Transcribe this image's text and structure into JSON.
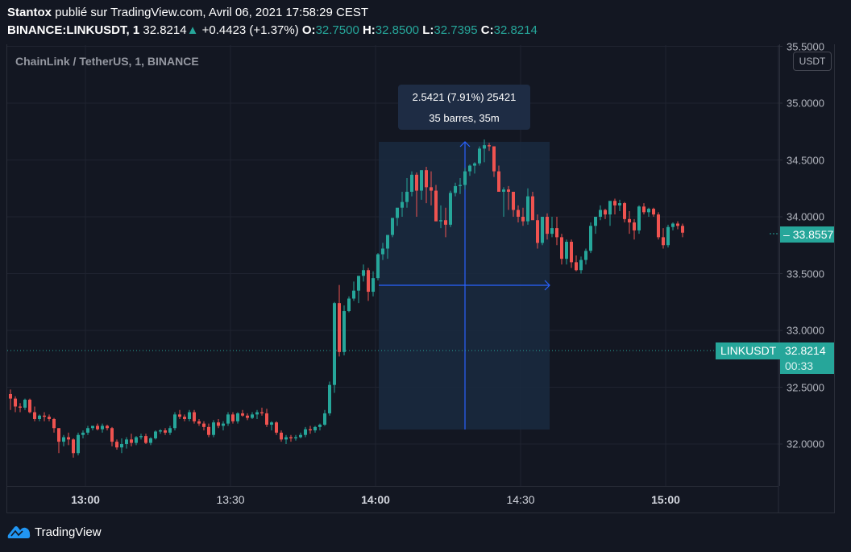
{
  "header": {
    "author": "Stantox",
    "published_text": "publié sur TradingView.com, Avril 06, 2021 17:58:29 CEST",
    "symbol_line": "BINANCE:LINKUSDT, 1",
    "last": "32.8214",
    "change_arrow": "▲",
    "change": "+0.4423 (+1.37%)",
    "o_label": "O:",
    "o_value": "32.7500",
    "h_label": "H:",
    "h_value": "32.8500",
    "l_label": "L:",
    "l_value": "32.7395",
    "c_label": "C:",
    "c_value": "32.8214"
  },
  "legend": {
    "title": "ChainLink / TetherUS, 1, BINANCE"
  },
  "price_scale": {
    "currency": "USDT",
    "ticks": [
      "35.5000",
      "35.0000",
      "34.5000",
      "34.0000",
      "33.5000",
      "33.0000",
      "32.5000",
      "32.0000"
    ],
    "last_price_label": "33.8557",
    "symbol_label": "LINKUSDT",
    "current_price": "32.8214",
    "countdown": "00:33"
  },
  "time_scale": {
    "ticks": [
      {
        "label": "13:00",
        "bold": true
      },
      {
        "label": "13:30",
        "bold": false
      },
      {
        "label": "14:00",
        "bold": true
      },
      {
        "label": "14:30",
        "bold": false
      },
      {
        "label": "15:00",
        "bold": true
      }
    ]
  },
  "measure": {
    "line1": "2.5421 (7.91%) 25421",
    "line2": "35 barres, 35m"
  },
  "footer": {
    "brand": "TradingView"
  },
  "colors": {
    "background": "#131722",
    "up": "#26a69a",
    "down": "#ef5350",
    "grid": "#1f2330",
    "measure_fill": "#1a2a40",
    "measure_line": "#2962ff",
    "tooltip_bg": "#1e2c44"
  },
  "chart_data": {
    "type": "candlestick",
    "title": "ChainLink / TetherUS, 1, BINANCE",
    "interval": "1m",
    "xlabel": "",
    "ylabel": "USDT",
    "ylim": [
      31.65,
      35.55
    ],
    "yticks": [
      32.0,
      32.5,
      33.0,
      33.5,
      34.0,
      34.5,
      35.0,
      35.5
    ],
    "xticks": [
      "13:00",
      "13:30",
      "14:00",
      "14:30",
      "15:00"
    ],
    "grid": true,
    "measurement": {
      "from_price": 32.13,
      "to_price": 34.67,
      "delta": 2.5421,
      "pct": 7.91,
      "bars": 35,
      "duration": "35m"
    },
    "current_price": 32.8214,
    "candles_ohlc": [
      [
        32.44,
        32.48,
        32.3,
        32.4
      ],
      [
        32.4,
        32.42,
        32.28,
        32.33
      ],
      [
        32.33,
        32.36,
        32.28,
        32.32
      ],
      [
        32.32,
        32.4,
        32.3,
        32.39
      ],
      [
        32.39,
        32.4,
        32.27,
        32.28
      ],
      [
        32.28,
        32.33,
        32.2,
        32.22
      ],
      [
        32.22,
        32.26,
        32.2,
        32.25
      ],
      [
        32.25,
        32.28,
        32.2,
        32.24
      ],
      [
        32.24,
        32.26,
        32.2,
        32.22
      ],
      [
        32.22,
        32.23,
        32.1,
        32.14
      ],
      [
        32.14,
        32.14,
        31.92,
        32.02
      ],
      [
        32.02,
        32.08,
        31.98,
        32.06
      ],
      [
        32.06,
        32.1,
        31.99,
        32.04
      ],
      [
        32.04,
        32.05,
        31.88,
        31.92
      ],
      [
        31.92,
        32.1,
        31.9,
        32.08
      ],
      [
        32.08,
        32.12,
        32.05,
        32.1
      ],
      [
        32.1,
        32.16,
        32.08,
        32.14
      ],
      [
        32.14,
        32.16,
        32.12,
        32.16
      ],
      [
        32.16,
        32.18,
        32.12,
        32.13
      ],
      [
        32.13,
        32.18,
        32.1,
        32.16
      ],
      [
        32.16,
        32.17,
        32.12,
        32.14
      ],
      [
        32.14,
        32.15,
        31.98,
        32.02
      ],
      [
        32.02,
        32.04,
        31.95,
        31.97
      ],
      [
        31.97,
        32.05,
        31.92,
        32.0
      ],
      [
        32.0,
        32.06,
        31.96,
        32.04
      ],
      [
        32.04,
        32.09,
        31.98,
        32.01
      ],
      [
        32.01,
        32.07,
        31.99,
        32.06
      ],
      [
        32.06,
        32.09,
        32.04,
        32.07
      ],
      [
        32.07,
        32.09,
        32.0,
        32.01
      ],
      [
        32.01,
        32.06,
        31.99,
        32.05
      ],
      [
        32.05,
        32.12,
        32.04,
        32.11
      ],
      [
        32.11,
        32.13,
        32.09,
        32.12
      ],
      [
        32.12,
        32.14,
        32.08,
        32.1
      ],
      [
        32.1,
        32.16,
        32.08,
        32.14
      ],
      [
        32.14,
        32.28,
        32.12,
        32.26
      ],
      [
        32.26,
        32.3,
        32.22,
        32.24
      ],
      [
        32.24,
        32.26,
        32.2,
        32.22
      ],
      [
        32.22,
        32.3,
        32.2,
        32.28
      ],
      [
        32.28,
        32.3,
        32.18,
        32.2
      ],
      [
        32.2,
        32.22,
        32.16,
        32.18
      ],
      [
        32.18,
        32.2,
        32.12,
        32.15
      ],
      [
        32.15,
        32.18,
        32.06,
        32.08
      ],
      [
        32.08,
        32.21,
        32.06,
        32.19
      ],
      [
        32.19,
        32.22,
        32.14,
        32.16
      ],
      [
        32.16,
        32.2,
        32.12,
        32.18
      ],
      [
        32.18,
        32.28,
        32.16,
        32.26
      ],
      [
        32.26,
        32.28,
        32.18,
        32.2
      ],
      [
        32.2,
        32.28,
        32.18,
        32.27
      ],
      [
        32.27,
        32.3,
        32.24,
        32.25
      ],
      [
        32.25,
        32.27,
        32.21,
        32.23
      ],
      [
        32.23,
        32.28,
        32.22,
        32.26
      ],
      [
        32.26,
        32.3,
        32.22,
        32.28
      ],
      [
        32.28,
        32.32,
        32.25,
        32.27
      ],
      [
        32.27,
        32.31,
        32.15,
        32.17
      ],
      [
        32.17,
        32.2,
        32.12,
        32.19
      ],
      [
        32.19,
        32.2,
        32.08,
        32.1
      ],
      [
        32.1,
        32.12,
        32.02,
        32.04
      ],
      [
        32.04,
        32.08,
        32.0,
        32.06
      ],
      [
        32.06,
        32.08,
        32.02,
        32.05
      ],
      [
        32.05,
        32.08,
        32.03,
        32.06
      ],
      [
        32.06,
        32.1,
        32.05,
        32.08
      ],
      [
        32.08,
        32.15,
        32.06,
        32.13
      ],
      [
        32.13,
        32.16,
        32.09,
        32.12
      ],
      [
        32.12,
        32.16,
        32.1,
        32.15
      ],
      [
        32.15,
        32.18,
        32.12,
        32.17
      ],
      [
        32.17,
        32.3,
        32.16,
        32.27
      ],
      [
        32.27,
        32.55,
        32.25,
        32.52
      ],
      [
        32.52,
        33.25,
        32.45,
        33.24
      ],
      [
        33.24,
        33.4,
        32.77,
        32.81
      ],
      [
        32.81,
        33.22,
        32.78,
        33.17
      ],
      [
        33.17,
        33.3,
        33.16,
        33.28
      ],
      [
        33.28,
        33.43,
        33.26,
        33.35
      ],
      [
        33.35,
        33.48,
        33.24,
        33.48
      ],
      [
        33.48,
        33.58,
        33.43,
        33.53
      ],
      [
        33.53,
        33.55,
        33.26,
        33.34
      ],
      [
        33.34,
        33.52,
        33.3,
        33.46
      ],
      [
        33.46,
        33.68,
        33.44,
        33.67
      ],
      [
        33.67,
        33.77,
        33.62,
        33.72
      ],
      [
        33.72,
        33.8,
        33.63,
        33.84
      ],
      [
        33.84,
        33.95,
        33.82,
        33.99
      ],
      [
        33.99,
        34.04,
        33.92,
        34.08
      ],
      [
        34.08,
        34.22,
        34.0,
        34.13
      ],
      [
        34.13,
        34.34,
        34.08,
        34.22
      ],
      [
        34.22,
        34.4,
        34.18,
        34.37
      ],
      [
        34.37,
        34.39,
        34.0,
        34.23
      ],
      [
        34.23,
        34.41,
        34.15,
        34.41
      ],
      [
        34.41,
        34.44,
        34.12,
        34.26
      ],
      [
        34.26,
        34.4,
        34.1,
        34.23
      ],
      [
        34.23,
        34.28,
        33.96,
        33.96
      ],
      [
        33.96,
        34.1,
        33.9,
        33.97
      ],
      [
        33.97,
        34.08,
        33.82,
        33.93
      ],
      [
        33.93,
        34.23,
        33.91,
        34.21
      ],
      [
        34.21,
        34.3,
        34.18,
        34.27
      ],
      [
        34.27,
        34.34,
        34.2,
        34.28
      ],
      [
        34.28,
        34.43,
        34.24,
        34.4
      ],
      [
        34.4,
        34.46,
        34.36,
        34.45
      ],
      [
        34.45,
        34.48,
        34.38,
        34.47
      ],
      [
        34.47,
        34.62,
        34.45,
        34.6
      ],
      [
        34.6,
        34.68,
        34.48,
        34.63
      ],
      [
        34.63,
        34.65,
        34.58,
        34.62
      ],
      [
        34.62,
        34.62,
        34.35,
        34.4
      ],
      [
        34.4,
        34.45,
        34.24,
        34.22
      ],
      [
        34.22,
        34.26,
        34.0,
        34.24
      ],
      [
        34.24,
        34.27,
        34.06,
        34.22
      ],
      [
        34.22,
        34.22,
        34.0,
        34.06
      ],
      [
        34.06,
        34.1,
        33.95,
        34.0
      ],
      [
        34.0,
        34.08,
        33.92,
        33.96
      ],
      [
        33.96,
        34.25,
        33.93,
        34.18
      ],
      [
        34.18,
        34.22,
        33.99,
        33.97
      ],
      [
        33.97,
        34.02,
        33.72,
        33.77
      ],
      [
        33.77,
        33.98,
        33.75,
        34.0
      ],
      [
        34.0,
        34.03,
        33.8,
        33.85
      ],
      [
        33.85,
        34.0,
        33.82,
        33.9
      ],
      [
        33.9,
        34.0,
        33.75,
        33.82
      ],
      [
        33.82,
        33.85,
        33.58,
        33.63
      ],
      [
        33.63,
        33.8,
        33.58,
        33.78
      ],
      [
        33.78,
        33.8,
        33.55,
        33.6
      ],
      [
        33.6,
        33.66,
        33.52,
        33.53
      ],
      [
        33.53,
        33.65,
        33.5,
        33.62
      ],
      [
        33.62,
        33.72,
        33.58,
        33.7
      ],
      [
        33.7,
        33.95,
        33.68,
        33.92
      ],
      [
        33.92,
        34.0,
        33.85,
        34.0
      ],
      [
        34.0,
        34.1,
        33.97,
        34.06
      ],
      [
        34.06,
        34.07,
        33.98,
        34.02
      ],
      [
        34.02,
        34.1,
        33.92,
        34.14
      ],
      [
        34.14,
        34.16,
        34.02,
        34.1
      ],
      [
        34.1,
        34.15,
        34.05,
        34.12
      ],
      [
        34.12,
        34.13,
        33.95,
        33.98
      ],
      [
        33.98,
        34.05,
        33.85,
        33.95
      ],
      [
        33.95,
        33.98,
        33.8,
        33.88
      ],
      [
        33.88,
        34.1,
        33.85,
        34.09
      ],
      [
        34.09,
        34.12,
        34.02,
        34.04
      ],
      [
        34.04,
        34.08,
        34.0,
        34.07
      ],
      [
        34.07,
        34.08,
        34.0,
        34.02
      ],
      [
        34.02,
        34.04,
        33.8,
        33.82
      ],
      [
        33.82,
        33.9,
        33.72,
        33.75
      ],
      [
        33.75,
        33.93,
        33.73,
        33.91
      ],
      [
        33.91,
        33.95,
        33.88,
        33.94
      ],
      [
        33.94,
        33.96,
        33.89,
        33.92
      ],
      [
        33.92,
        33.94,
        33.82,
        33.86
      ]
    ]
  }
}
